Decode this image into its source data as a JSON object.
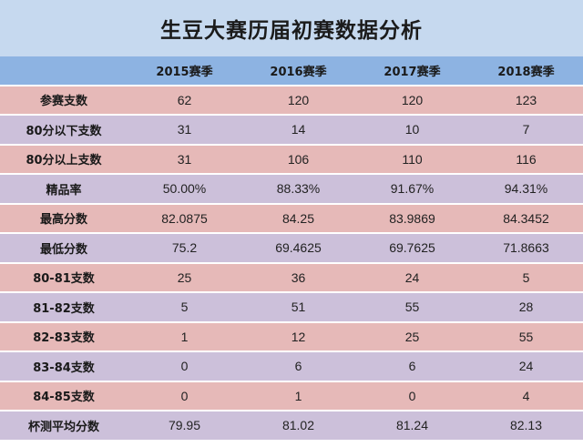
{
  "title": "生豆大赛历届初赛数据分析",
  "colors": {
    "title_bg": "#c6d9ef",
    "header_bg": "#8db3e2",
    "row_pink": "#e6b9b8",
    "row_purple": "#ccc0da"
  },
  "table": {
    "corner": "",
    "columns": [
      "2015赛季",
      "2016赛季",
      "2017赛季",
      "2018赛季"
    ],
    "rows": [
      {
        "label": "参赛支数",
        "values": [
          "62",
          "120",
          "120",
          "123"
        ]
      },
      {
        "label": "80分以下支数",
        "values": [
          "31",
          "14",
          "10",
          "7"
        ]
      },
      {
        "label": "80分以上支数",
        "values": [
          "31",
          "106",
          "110",
          "116"
        ]
      },
      {
        "label": "精品率",
        "values": [
          "50.00%",
          "88.33%",
          "91.67%",
          "94.31%"
        ]
      },
      {
        "label": "最高分数",
        "values": [
          "82.0875",
          "84.25",
          "83.9869",
          "84.3452"
        ]
      },
      {
        "label": "最低分数",
        "values": [
          "75.2",
          "69.4625",
          "69.7625",
          "71.8663"
        ]
      },
      {
        "label": "80-81支数",
        "values": [
          "25",
          "36",
          "24",
          "5"
        ]
      },
      {
        "label": "81-82支数",
        "values": [
          "5",
          "51",
          "55",
          "28"
        ]
      },
      {
        "label": "82-83支数",
        "values": [
          "1",
          "12",
          "25",
          "55"
        ]
      },
      {
        "label": "83-84支数",
        "values": [
          "0",
          "6",
          "6",
          "24"
        ]
      },
      {
        "label": "84-85支数",
        "values": [
          "0",
          "1",
          "0",
          "4"
        ]
      },
      {
        "label": "杯测平均分数",
        "values": [
          "79.95",
          "81.02",
          "81.24",
          "82.13"
        ]
      }
    ]
  }
}
